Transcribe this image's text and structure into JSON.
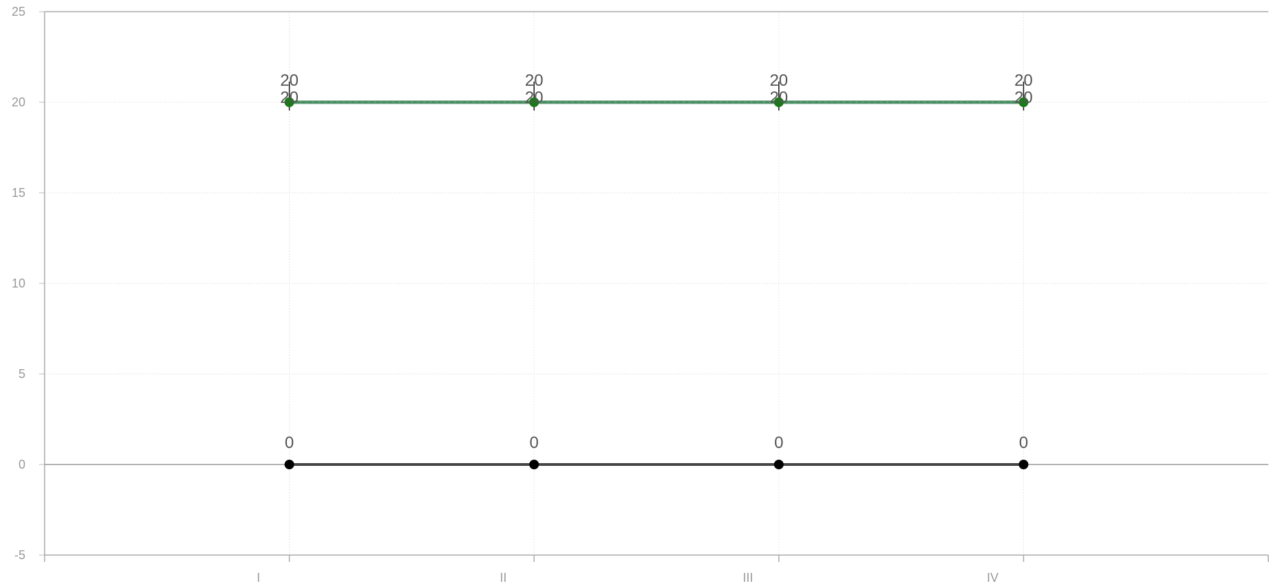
{
  "chart_data": {
    "type": "line",
    "title": "",
    "xlabel": "",
    "ylabel": "",
    "x_tick_labels": [
      "I",
      "II",
      "III",
      "IV"
    ],
    "x_points": [
      1,
      2,
      3,
      4
    ],
    "xlim": [
      0,
      5
    ],
    "ylim": [
      -5,
      25
    ],
    "y_ticks": [
      -5,
      0,
      5,
      10,
      15,
      20,
      25
    ],
    "grid": true,
    "legend": "none",
    "series": [
      {
        "values": [
          20,
          20,
          20,
          20
        ],
        "color": "#1a7a1a",
        "line_color": "#5a9a70",
        "show_error_bars": true
      },
      {
        "values": [
          20,
          20,
          20,
          20
        ],
        "color": "#1a7a1a",
        "line_color": "#5a9a70",
        "show_error_bars": false
      },
      {
        "values": [
          0,
          0,
          0,
          0
        ],
        "color": "#000000",
        "line_color": "#444444",
        "show_error_bars": false
      }
    ],
    "data_labels": [
      {
        "series": 0,
        "values": [
          "20",
          "20",
          "20",
          "20"
        ],
        "position": "above"
      },
      {
        "series": 1,
        "values": [
          "20",
          "20",
          "20",
          "20"
        ],
        "position": "on-point"
      },
      {
        "series": 2,
        "values": [
          "0",
          "0",
          "0",
          "0"
        ],
        "position": "above"
      }
    ]
  }
}
